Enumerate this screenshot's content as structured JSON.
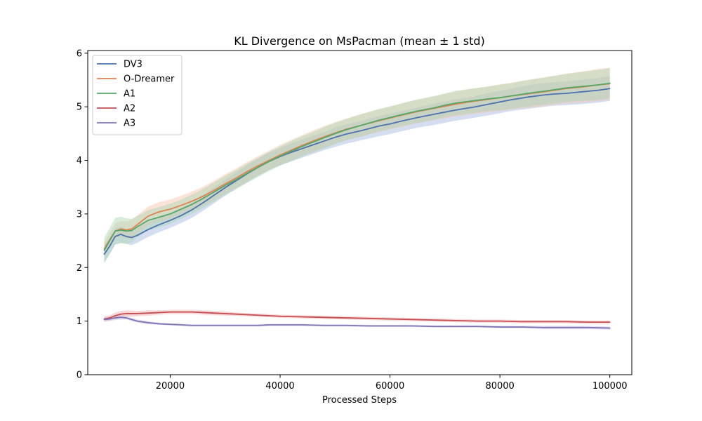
{
  "chart_data": {
    "type": "line",
    "title": "KL Divergence on MsPacman (mean ± 1 std)",
    "xlabel": "Processed Steps",
    "ylabel": "",
    "xlim": [
      5000,
      104000
    ],
    "ylim": [
      0,
      6.05
    ],
    "xticks": [
      20000,
      40000,
      60000,
      80000,
      100000
    ],
    "yticks": [
      0,
      1,
      2,
      3,
      4,
      5,
      6
    ],
    "legend_position": "top-left",
    "grid": false,
    "series": [
      {
        "name": "DV3",
        "color": "#4c72b0",
        "band_color": "#a1b6e0",
        "x": [
          8000,
          9000,
          10000,
          11000,
          12000,
          13000,
          14000,
          16000,
          18000,
          20000,
          22000,
          24000,
          26000,
          28000,
          30000,
          32000,
          34000,
          36000,
          38000,
          40000,
          42000,
          44000,
          46000,
          48000,
          50000,
          52000,
          55000,
          58000,
          60000,
          62000,
          65000,
          68000,
          70000,
          72000,
          75000,
          78000,
          80000,
          82000,
          85000,
          88000,
          90000,
          92000,
          95000,
          98000,
          100000
        ],
        "y": [
          2.25,
          2.4,
          2.58,
          2.62,
          2.58,
          2.56,
          2.6,
          2.71,
          2.8,
          2.88,
          2.97,
          3.08,
          3.21,
          3.35,
          3.49,
          3.62,
          3.75,
          3.87,
          3.98,
          4.07,
          4.15,
          4.22,
          4.29,
          4.36,
          4.43,
          4.49,
          4.56,
          4.64,
          4.68,
          4.73,
          4.8,
          4.86,
          4.9,
          4.94,
          4.99,
          5.05,
          5.09,
          5.13,
          5.18,
          5.22,
          5.24,
          5.25,
          5.28,
          5.31,
          5.34
        ],
        "std": [
          0.16,
          0.15,
          0.15,
          0.15,
          0.14,
          0.14,
          0.14,
          0.14,
          0.14,
          0.14,
          0.14,
          0.15,
          0.15,
          0.15,
          0.15,
          0.15,
          0.16,
          0.16,
          0.16,
          0.16,
          0.17,
          0.17,
          0.17,
          0.17,
          0.18,
          0.18,
          0.18,
          0.19,
          0.19,
          0.19,
          0.19,
          0.2,
          0.2,
          0.2,
          0.2,
          0.21,
          0.21,
          0.21,
          0.22,
          0.22,
          0.22,
          0.22,
          0.23,
          0.23,
          0.23
        ]
      },
      {
        "name": "O-Dreamer",
        "color": "#dd8452",
        "band_color": "#f4c3aa",
        "x": [
          8000,
          9000,
          10000,
          11000,
          12000,
          13000,
          14000,
          16000,
          18000,
          20000,
          22000,
          24000,
          26000,
          28000,
          30000,
          32000,
          34000,
          36000,
          38000,
          40000,
          42000,
          44000,
          46000,
          48000,
          50000,
          52000,
          55000,
          58000,
          60000,
          62000,
          65000,
          68000,
          70000,
          72000,
          75000,
          78000,
          80000,
          82000,
          85000,
          88000,
          90000,
          92000,
          95000,
          98000,
          100000
        ],
        "y": [
          2.35,
          2.52,
          2.68,
          2.72,
          2.7,
          2.72,
          2.8,
          2.96,
          3.04,
          3.09,
          3.16,
          3.24,
          3.33,
          3.44,
          3.56,
          3.67,
          3.79,
          3.9,
          4.0,
          4.1,
          4.19,
          4.28,
          4.36,
          4.44,
          4.51,
          4.58,
          4.66,
          4.74,
          4.79,
          4.84,
          4.91,
          4.97,
          5.01,
          5.05,
          5.1,
          5.14,
          5.17,
          5.2,
          5.24,
          5.28,
          5.31,
          5.34,
          5.37,
          5.41,
          5.43
        ],
        "std": [
          0.12,
          0.13,
          0.14,
          0.15,
          0.16,
          0.17,
          0.17,
          0.18,
          0.18,
          0.18,
          0.18,
          0.18,
          0.18,
          0.18,
          0.18,
          0.18,
          0.18,
          0.18,
          0.18,
          0.19,
          0.19,
          0.19,
          0.2,
          0.2,
          0.2,
          0.2,
          0.21,
          0.21,
          0.21,
          0.22,
          0.22,
          0.22,
          0.23,
          0.23,
          0.24,
          0.24,
          0.25,
          0.25,
          0.26,
          0.27,
          0.27,
          0.28,
          0.29,
          0.3,
          0.3
        ]
      },
      {
        "name": "A1",
        "color": "#55a868",
        "band_color": "#a9d5b1",
        "x": [
          8000,
          9000,
          10000,
          11000,
          12000,
          13000,
          14000,
          16000,
          18000,
          20000,
          22000,
          24000,
          26000,
          28000,
          30000,
          32000,
          34000,
          36000,
          38000,
          40000,
          42000,
          44000,
          46000,
          48000,
          50000,
          52000,
          55000,
          58000,
          60000,
          62000,
          65000,
          68000,
          70000,
          72000,
          75000,
          78000,
          80000,
          82000,
          85000,
          88000,
          90000,
          92000,
          95000,
          98000,
          100000
        ],
        "y": [
          2.32,
          2.5,
          2.68,
          2.7,
          2.68,
          2.69,
          2.76,
          2.88,
          2.94,
          3.0,
          3.09,
          3.18,
          3.29,
          3.41,
          3.53,
          3.64,
          3.76,
          3.87,
          3.98,
          4.08,
          4.17,
          4.26,
          4.34,
          4.42,
          4.5,
          4.57,
          4.66,
          4.75,
          4.8,
          4.85,
          4.92,
          4.98,
          5.03,
          5.07,
          5.11,
          5.15,
          5.17,
          5.2,
          5.25,
          5.29,
          5.32,
          5.35,
          5.38,
          5.41,
          5.44
        ],
        "std": [
          0.24,
          0.24,
          0.25,
          0.25,
          0.24,
          0.22,
          0.2,
          0.19,
          0.19,
          0.19,
          0.18,
          0.18,
          0.18,
          0.18,
          0.18,
          0.18,
          0.18,
          0.18,
          0.18,
          0.18,
          0.19,
          0.19,
          0.19,
          0.2,
          0.2,
          0.2,
          0.21,
          0.21,
          0.21,
          0.21,
          0.22,
          0.22,
          0.22,
          0.23,
          0.23,
          0.23,
          0.24,
          0.24,
          0.25,
          0.25,
          0.26,
          0.26,
          0.27,
          0.28,
          0.28
        ]
      },
      {
        "name": "A2",
        "color": "#c44e52",
        "band_color": "#f0a8a9",
        "x": [
          8000,
          9000,
          10000,
          11000,
          12000,
          13000,
          14000,
          16000,
          18000,
          20000,
          22000,
          24000,
          26000,
          28000,
          30000,
          32000,
          34000,
          36000,
          38000,
          40000,
          44000,
          48000,
          52000,
          56000,
          60000,
          64000,
          68000,
          72000,
          76000,
          80000,
          84000,
          88000,
          92000,
          96000,
          100000
        ],
        "y": [
          1.04,
          1.06,
          1.1,
          1.13,
          1.14,
          1.14,
          1.14,
          1.15,
          1.16,
          1.17,
          1.17,
          1.17,
          1.16,
          1.15,
          1.14,
          1.13,
          1.12,
          1.11,
          1.1,
          1.09,
          1.08,
          1.07,
          1.06,
          1.05,
          1.04,
          1.03,
          1.02,
          1.01,
          1.0,
          1.0,
          0.99,
          0.99,
          0.99,
          0.98,
          0.98
        ],
        "std": [
          0.05,
          0.05,
          0.06,
          0.06,
          0.06,
          0.06,
          0.05,
          0.05,
          0.04,
          0.04,
          0.04,
          0.04,
          0.04,
          0.04,
          0.04,
          0.03,
          0.03,
          0.03,
          0.03,
          0.03,
          0.03,
          0.03,
          0.03,
          0.03,
          0.03,
          0.03,
          0.03,
          0.03,
          0.03,
          0.03,
          0.03,
          0.03,
          0.03,
          0.03,
          0.03
        ]
      },
      {
        "name": "A3",
        "color": "#8172b3",
        "band_color": "#c3bbe0",
        "x": [
          8000,
          9000,
          10000,
          11000,
          12000,
          13000,
          14000,
          16000,
          18000,
          20000,
          22000,
          24000,
          26000,
          28000,
          30000,
          32000,
          34000,
          36000,
          38000,
          40000,
          44000,
          48000,
          52000,
          56000,
          60000,
          64000,
          68000,
          72000,
          76000,
          80000,
          84000,
          88000,
          92000,
          96000,
          100000
        ],
        "y": [
          1.03,
          1.04,
          1.06,
          1.07,
          1.06,
          1.03,
          1.0,
          0.97,
          0.95,
          0.94,
          0.93,
          0.92,
          0.92,
          0.92,
          0.92,
          0.92,
          0.92,
          0.92,
          0.93,
          0.93,
          0.93,
          0.92,
          0.92,
          0.91,
          0.91,
          0.91,
          0.9,
          0.9,
          0.9,
          0.89,
          0.89,
          0.88,
          0.88,
          0.88,
          0.87
        ],
        "std": [
          0.04,
          0.04,
          0.04,
          0.04,
          0.03,
          0.03,
          0.03,
          0.03,
          0.02,
          0.02,
          0.02,
          0.02,
          0.02,
          0.02,
          0.02,
          0.02,
          0.02,
          0.02,
          0.02,
          0.02,
          0.02,
          0.02,
          0.02,
          0.02,
          0.02,
          0.02,
          0.02,
          0.02,
          0.02,
          0.02,
          0.02,
          0.03,
          0.03,
          0.03,
          0.03
        ]
      }
    ]
  }
}
